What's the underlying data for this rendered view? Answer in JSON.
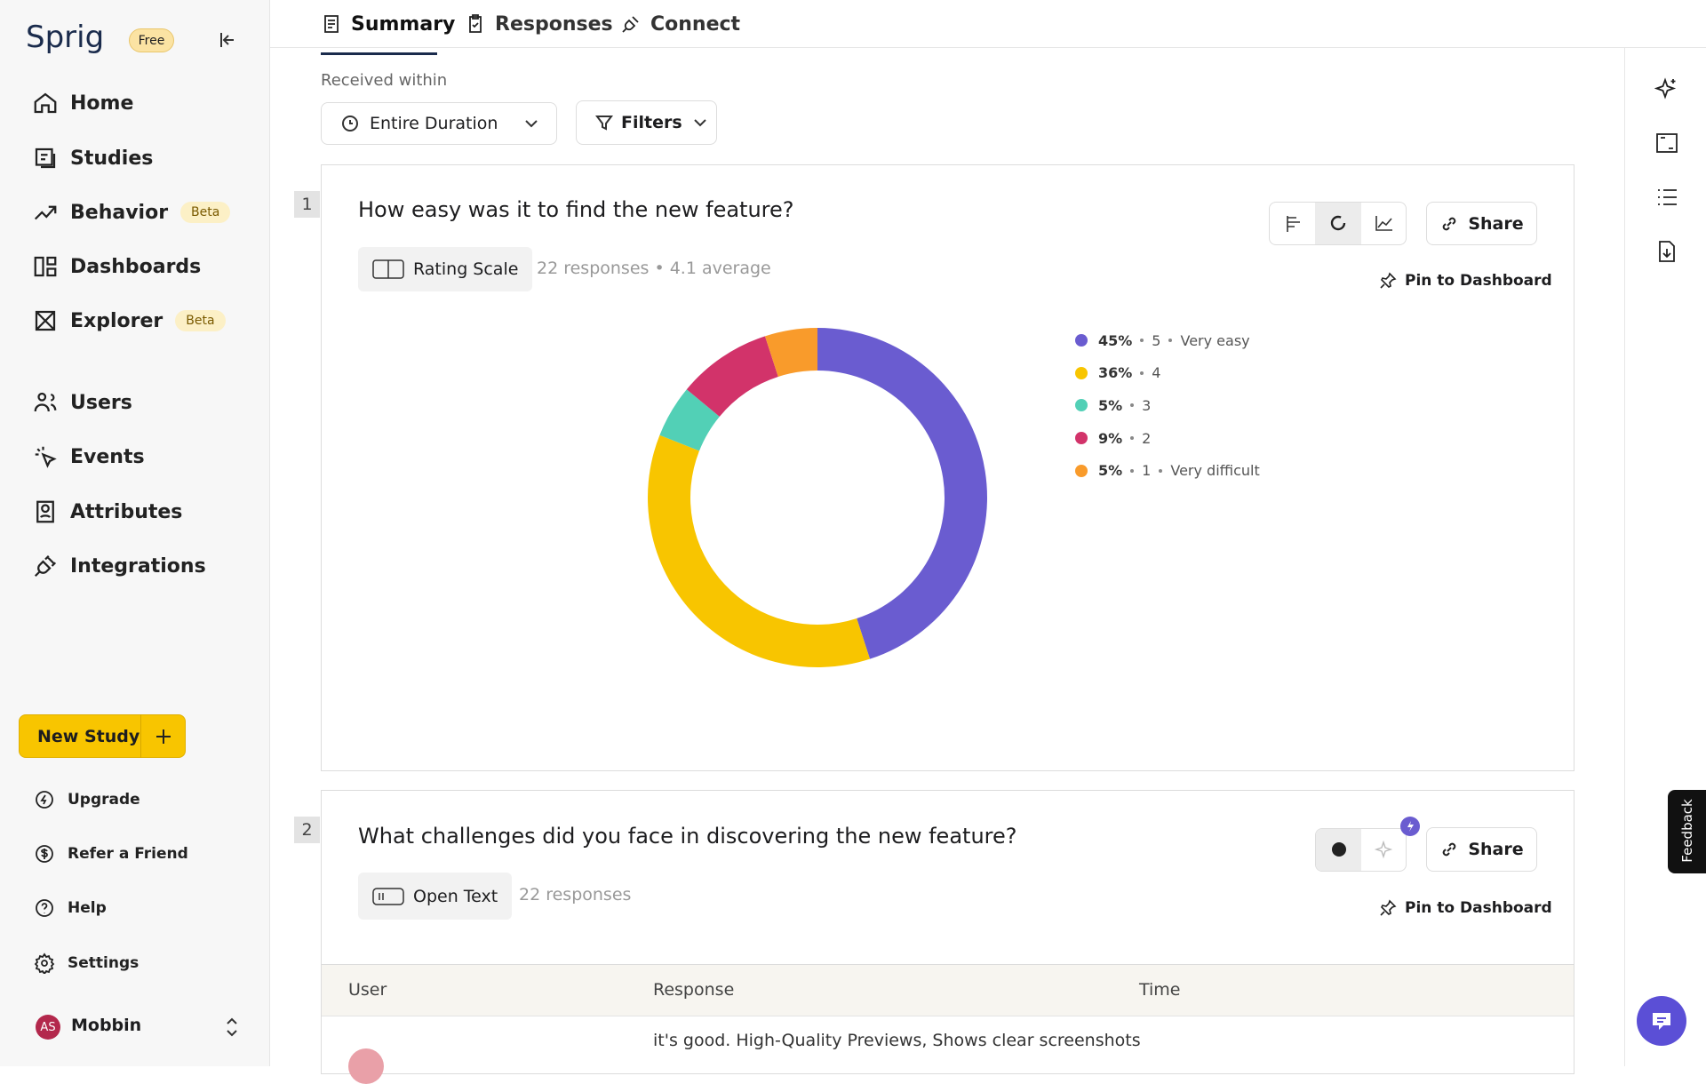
{
  "sidebar": {
    "logo": "Sprig",
    "plan": "Free",
    "nav": [
      {
        "label": "Home"
      },
      {
        "label": "Studies"
      },
      {
        "label": "Behavior",
        "badge": "Beta"
      },
      {
        "label": "Dashboards"
      },
      {
        "label": "Explorer",
        "badge": "Beta"
      }
    ],
    "nav2": [
      "Users",
      "Events",
      "Attributes",
      "Integrations"
    ],
    "new_study": "New Study",
    "links": [
      "Upgrade",
      "Refer a Friend",
      "Help",
      "Settings"
    ],
    "user": {
      "initials": "AS",
      "name": "Mobbin"
    }
  },
  "tabs": [
    "Summary",
    "Responses",
    "Connect"
  ],
  "filters": {
    "label": "Received within",
    "duration": "Entire Duration",
    "filters": "Filters"
  },
  "questions": [
    {
      "number": "1",
      "title": "How easy was it to find the new feature?",
      "type": "Rating Scale",
      "meta": "22 responses • 4.1 average",
      "share": "Share",
      "pin": "Pin to Dashboard"
    },
    {
      "number": "2",
      "title": "What challenges did you face in discovering the new feature?",
      "type": "Open Text",
      "meta": "22 responses",
      "share": "Share",
      "pin": "Pin to Dashboard",
      "table": {
        "headers": [
          "User",
          "Response",
          "Time"
        ],
        "rows": [
          {
            "response": "it's good. High-Quality Previews, Shows clear screenshots"
          }
        ]
      }
    }
  ],
  "chart_data": {
    "type": "pie",
    "donut": true,
    "categories": [
      "5",
      "4",
      "3",
      "2",
      "1"
    ],
    "descriptions": [
      "Very easy",
      null,
      null,
      null,
      "Very difficult"
    ],
    "values": [
      45,
      36,
      5,
      9,
      5
    ],
    "value_labels": [
      "45%",
      "36%",
      "5%",
      "9%",
      "5%"
    ],
    "colors": [
      "#6a5cd0",
      "#f8c500",
      "#52d0b6",
      "#d2336a",
      "#f99b2b"
    ]
  },
  "feedback": "Feedback"
}
